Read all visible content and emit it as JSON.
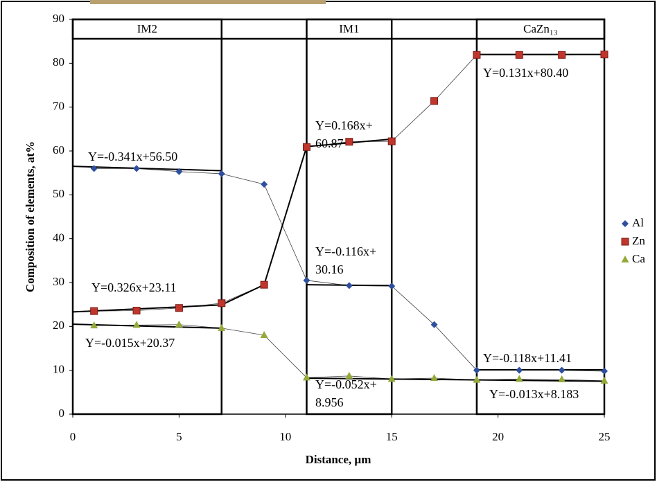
{
  "chart_data": {
    "type": "scatter",
    "x_label": "Distance, µm",
    "y_label": "Composition of elements, at%",
    "x": [
      1,
      3,
      5,
      7,
      9,
      11,
      13,
      15,
      17,
      19,
      21,
      23,
      25
    ],
    "series": [
      {
        "name": "Al",
        "color": "#2e4f9e",
        "marker": "diamond",
        "values": [
          56.0,
          56.0,
          55.3,
          54.8,
          52.4,
          30.5,
          29.3,
          29.2,
          20.4,
          10.0,
          10.0,
          10.0,
          9.8
        ]
      },
      {
        "name": "Zn",
        "color": "#c0362c",
        "marker": "square",
        "values": [
          23.5,
          23.6,
          24.2,
          25.3,
          29.5,
          60.9,
          62.1,
          62.2,
          71.4,
          81.9,
          81.9,
          81.9,
          82.0
        ]
      },
      {
        "name": "Ca",
        "color": "#93aa3a",
        "marker": "triangle",
        "values": [
          20.2,
          20.3,
          20.4,
          19.6,
          18.0,
          8.3,
          8.7,
          8.0,
          8.2,
          7.8,
          8.0,
          7.9,
          7.6
        ]
      }
    ],
    "fit_lines": [
      {
        "x": [
          0,
          7
        ],
        "values": [
          56.5,
          55.5
        ]
      },
      {
        "x": [
          0,
          7,
          9,
          11,
          15
        ],
        "values": [
          23.3,
          24.9,
          29.5,
          61.0,
          62.7
        ]
      },
      {
        "x": [
          0,
          7
        ],
        "values": [
          20.5,
          19.6
        ]
      },
      {
        "x": [
          11,
          15
        ],
        "values": [
          29.5,
          29.3
        ]
      },
      {
        "x": [
          11,
          25
        ],
        "values": [
          8.2,
          7.5
        ]
      },
      {
        "x": [
          19,
          25
        ],
        "values": [
          82.0,
          82.0
        ]
      },
      {
        "x": [
          19,
          25
        ],
        "values": [
          10.1,
          10.1
        ]
      }
    ],
    "regions": [
      {
        "label": "IM2",
        "x": [
          0,
          7
        ]
      },
      {
        "label": "IM1",
        "x": [
          11,
          15
        ]
      },
      {
        "label": "CaZn₁₃",
        "x": [
          19,
          25
        ]
      }
    ],
    "annotations": [
      {
        "lines": [
          "Y=0.131x+80.40"
        ]
      },
      {
        "lines": [
          "Y=0.168x+",
          "60.87"
        ]
      },
      {
        "lines": [
          "Y=-0.341x+56.50"
        ]
      },
      {
        "lines": [
          "Y=-0.116x+",
          "30.16"
        ]
      },
      {
        "lines": [
          "Y=0.326x+23.11"
        ]
      },
      {
        "lines": [
          "Y=-0.015x+20.37"
        ]
      },
      {
        "lines": [
          "Y=-0.118x+11.41"
        ]
      },
      {
        "lines": [
          "Y=-0.052x+",
          "8.956"
        ]
      },
      {
        "lines": [
          "Y=-0.013x+8.183"
        ]
      }
    ],
    "xlim": [
      0,
      25
    ],
    "xticks": [
      0,
      5,
      10,
      15,
      20,
      25
    ],
    "ylim": [
      0,
      90
    ],
    "yticks": [
      0,
      10,
      20,
      30,
      40,
      50,
      60,
      70,
      80,
      90
    ],
    "grid": false,
    "legend": "right"
  }
}
